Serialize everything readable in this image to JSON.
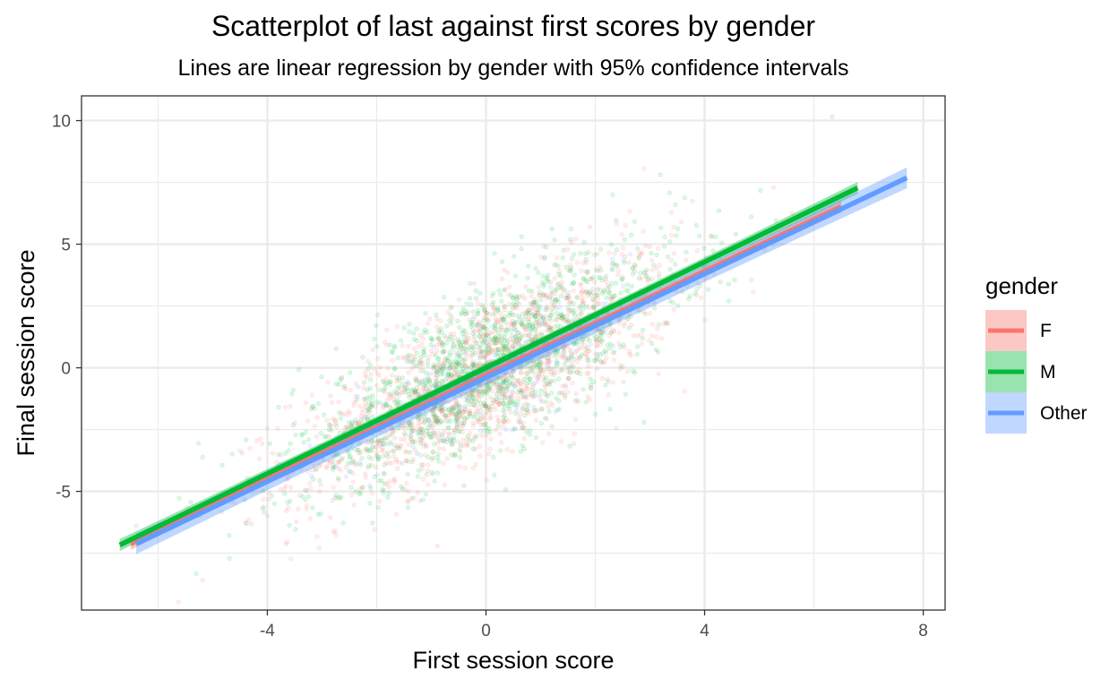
{
  "chart_data": {
    "type": "scatter",
    "title": "Scatterplot of last against first scores by gender",
    "subtitle": "Lines are linear regression by gender with 95% confidence intervals",
    "xlabel": "First session score",
    "ylabel": "Final session score",
    "xlim": [
      -7.4,
      8.4
    ],
    "ylim": [
      -9.8,
      11.0
    ],
    "x_ticks": [
      -4,
      0,
      4,
      8
    ],
    "x_tick_labels": [
      "-4",
      "0",
      "4",
      "8"
    ],
    "y_ticks": [
      -5,
      0,
      5,
      10
    ],
    "y_tick_labels": [
      "-5",
      "0",
      "5",
      "10"
    ],
    "grid": true,
    "legend": {
      "title": "gender",
      "position": "right"
    },
    "point_alpha": 0.15,
    "series": [
      {
        "name": "F",
        "color": "#F8766D",
        "points_approx": 3000,
        "x_range": [
          -6.5,
          6.5
        ],
        "regression": {
          "intercept": -0.3,
          "slope": 1.05
        }
      },
      {
        "name": "M",
        "color": "#00BA38",
        "points_approx": 3000,
        "x_range": [
          -6.7,
          6.8
        ],
        "regression": {
          "intercept": 0.0,
          "slope": 1.07
        }
      },
      {
        "name": "Other",
        "color": "#619CFF",
        "points_approx": 300,
        "x_range": [
          -6.4,
          7.7
        ],
        "regression": {
          "intercept": -0.4,
          "slope": 1.05
        }
      }
    ]
  }
}
